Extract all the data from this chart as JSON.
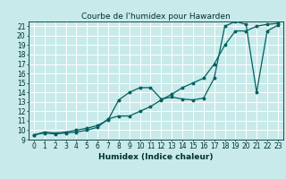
{
  "title": "Courbe de l'humidex pour Hawarden",
  "xlabel": "Humidex (Indice chaleur)",
  "bg_color": "#c8eaea",
  "line_color": "#006060",
  "grid_color": "#ffffff",
  "xlim": [
    -0.5,
    23.5
  ],
  "ylim": [
    9,
    21.5
  ],
  "xticks": [
    0,
    1,
    2,
    3,
    4,
    5,
    6,
    7,
    8,
    9,
    10,
    11,
    12,
    13,
    14,
    15,
    16,
    17,
    18,
    19,
    20,
    21,
    22,
    23
  ],
  "yticks": [
    9,
    10,
    11,
    12,
    13,
    14,
    15,
    16,
    17,
    18,
    19,
    20,
    21
  ],
  "line1_x": [
    0,
    1,
    2,
    3,
    4,
    5,
    6,
    7,
    8,
    9,
    10,
    11,
    12,
    13,
    14,
    15,
    16,
    17,
    18,
    19,
    20,
    21,
    22,
    23
  ],
  "line1_y": [
    9.5,
    9.8,
    9.7,
    9.8,
    10.0,
    10.2,
    10.5,
    11.1,
    13.2,
    14.0,
    14.5,
    14.5,
    13.3,
    13.5,
    13.3,
    13.2,
    13.4,
    15.5,
    21.0,
    21.5,
    21.2,
    14.0,
    20.5,
    21.1
  ],
  "line2_x": [
    0,
    1,
    2,
    3,
    4,
    5,
    6,
    7,
    8,
    9,
    10,
    11,
    12,
    13,
    14,
    15,
    16,
    17,
    18,
    19,
    20,
    21,
    22,
    23
  ],
  "line2_y": [
    9.5,
    9.7,
    9.6,
    9.7,
    9.8,
    10.0,
    10.3,
    11.2,
    11.5,
    11.5,
    12.0,
    12.5,
    13.2,
    13.8,
    14.5,
    15.0,
    15.5,
    17.0,
    19.0,
    20.5,
    20.5,
    21.0,
    21.2,
    21.3
  ],
  "title_fontsize": 6.5,
  "axis_fontsize": 6.5,
  "tick_fontsize": 5.5
}
